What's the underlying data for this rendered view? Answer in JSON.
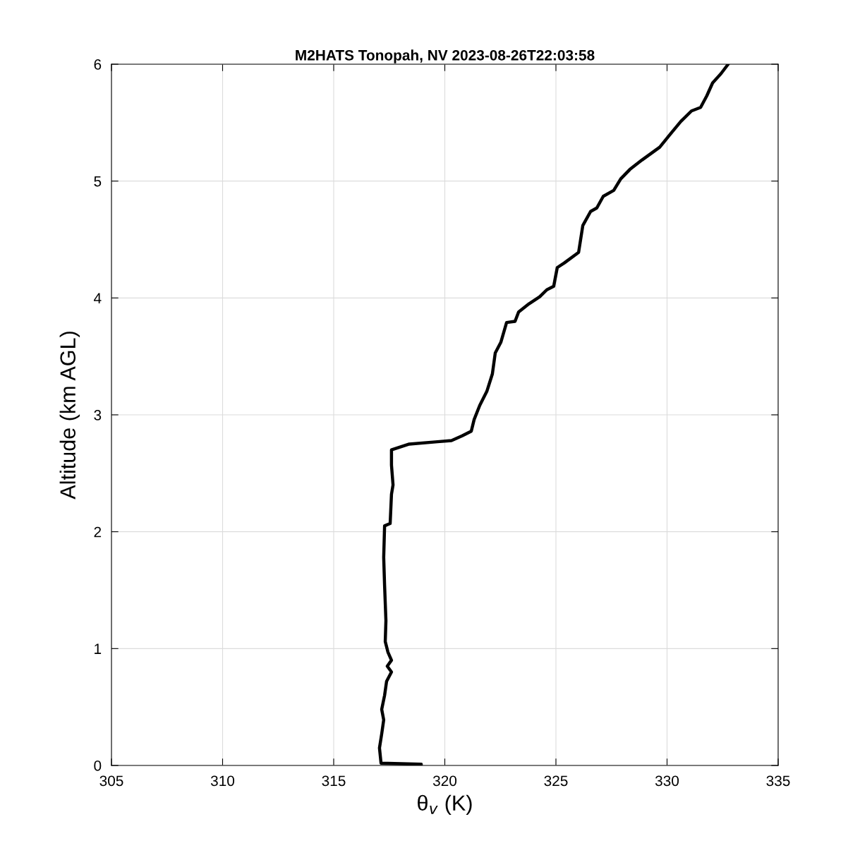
{
  "chart_data": {
    "type": "line",
    "title": "M2HATS Tonopah, NV 2023-08-26T22:03:58",
    "xlabel": "θ$_{v}$ (K)",
    "ylabel": "Altitude (km AGL)",
    "series": [
      {
        "color": "#000000",
        "x": [
          318.94,
          317.13,
          317.06,
          317.16,
          317.25,
          317.16,
          317.29,
          317.38,
          317.6,
          317.41,
          317.6,
          317.44,
          317.32,
          317.35,
          317.29,
          317.25,
          317.29,
          317.54,
          317.6,
          317.67,
          317.6,
          317.6,
          318.4,
          319.67,
          320.3,
          320.78,
          321.19,
          321.32,
          321.57,
          321.89,
          322.14,
          322.27,
          322.52,
          322.78,
          323.16,
          323.32,
          323.79,
          324.27,
          324.59,
          324.9,
          325.06,
          325.38,
          326.02,
          326.21,
          326.56,
          326.84,
          327.13,
          327.6,
          327.92,
          328.33,
          328.87,
          329.67,
          330.14,
          330.62,
          331.1,
          331.51,
          331.79,
          332.05,
          332.43,
          332.75
        ],
        "values": [
          0.01,
          0.02,
          0.15,
          0.27,
          0.39,
          0.48,
          0.6,
          0.72,
          0.8,
          0.85,
          0.9,
          0.97,
          1.06,
          1.24,
          1.54,
          1.78,
          2.05,
          2.07,
          2.32,
          2.4,
          2.57,
          2.7,
          2.75,
          2.77,
          2.78,
          2.82,
          2.86,
          2.96,
          3.08,
          3.2,
          3.35,
          3.53,
          3.62,
          3.79,
          3.8,
          3.88,
          3.95,
          4.01,
          4.07,
          4.1,
          4.26,
          4.3,
          4.39,
          4.62,
          4.74,
          4.77,
          4.87,
          4.92,
          5.02,
          5.1,
          5.18,
          5.29,
          5.4,
          5.51,
          5.6,
          5.63,
          5.73,
          5.84,
          5.92,
          6.0
        ]
      }
    ],
    "xlim": [
      305,
      335
    ],
    "xticks": [
      305,
      310,
      315,
      320,
      325,
      330,
      335
    ],
    "ylim": [
      0,
      6
    ],
    "yticks": [
      0,
      1,
      2,
      3,
      4,
      5,
      6
    ],
    "grid": true,
    "marker": "none",
    "line_style": "solid"
  }
}
